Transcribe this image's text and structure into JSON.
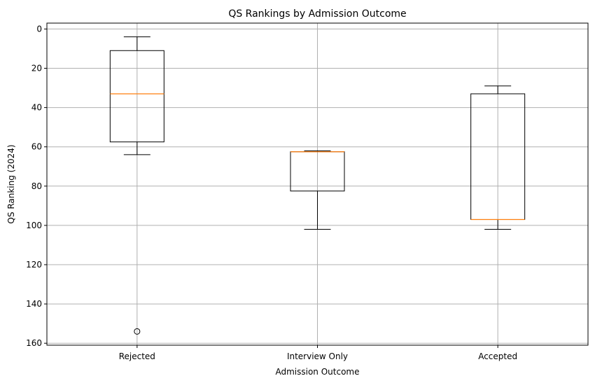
{
  "chart_data": {
    "type": "box",
    "title": "QS Rankings by Admission Outcome",
    "xlabel": "Admission Outcome",
    "ylabel": "QS Ranking (2024)",
    "ylim": [
      161,
      -3
    ],
    "y_inverted": true,
    "yticks": [
      0,
      20,
      40,
      60,
      80,
      100,
      120,
      140,
      160
    ],
    "grid": true,
    "categories": [
      "Rejected",
      "Interview Only",
      "Accepted"
    ],
    "boxes": [
      {
        "category": "Rejected",
        "whisker_low": 4,
        "q1": 11,
        "median": 33,
        "q3": 57.5,
        "whisker_high": 64,
        "outliers": [
          154
        ]
      },
      {
        "category": "Interview Only",
        "whisker_low": 62,
        "q1": 62.5,
        "median": 62.5,
        "q3": 82.5,
        "whisker_high": 102,
        "outliers": []
      },
      {
        "category": "Accepted",
        "whisker_low": 29,
        "q1": 33,
        "median": 97,
        "q3": 97,
        "whisker_high": 102,
        "outliers": []
      }
    ],
    "colors": {
      "box": "#000000",
      "median": "#ff7f0e",
      "grid": "#b0b0b0"
    }
  }
}
